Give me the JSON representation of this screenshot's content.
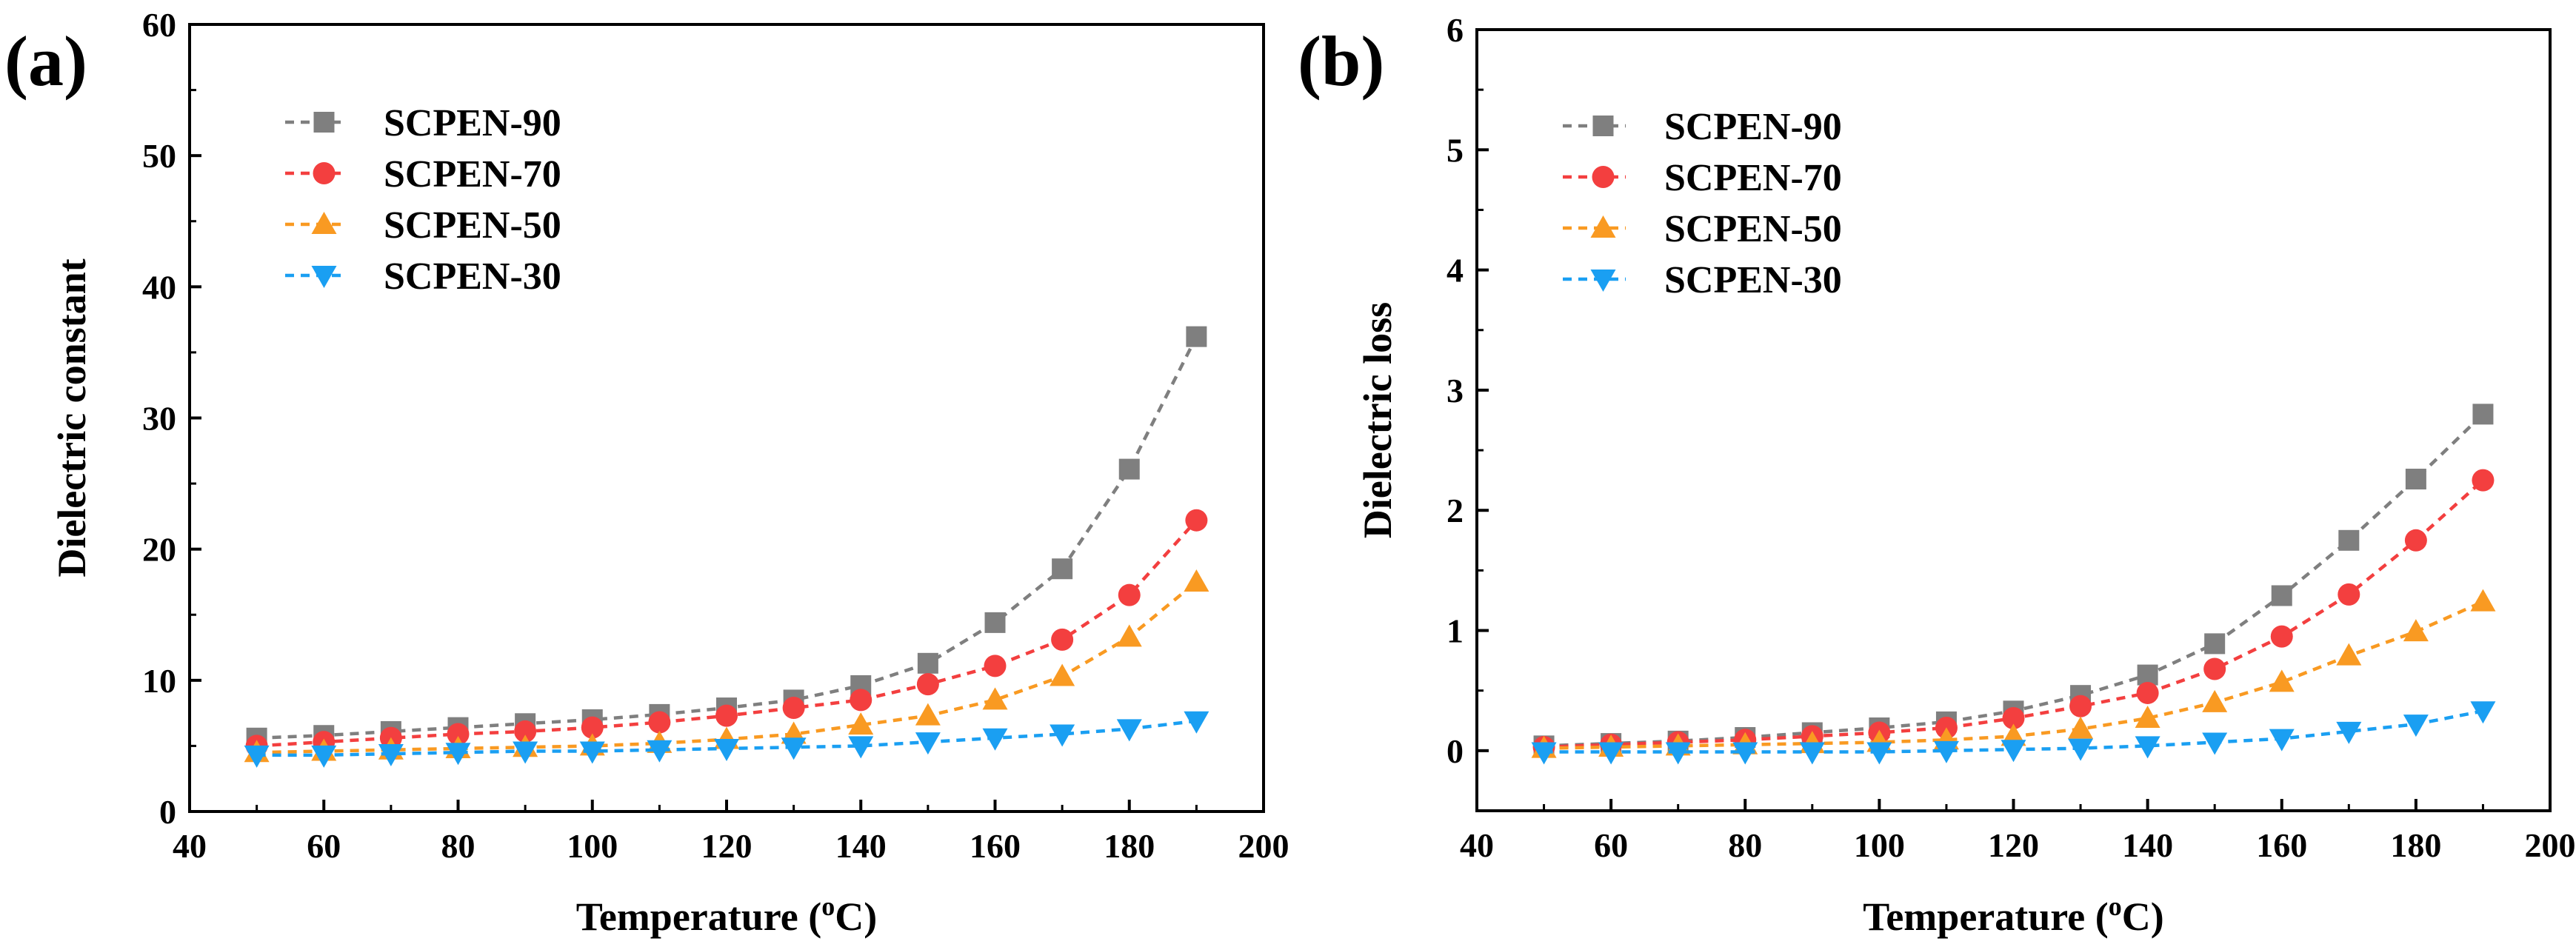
{
  "chart_data": [
    {
      "panel": "(a)",
      "type": "line",
      "xlabel": "Temperature (",
      "xlabel_super": "o",
      "xlabel_suffix": "C)",
      "ylabel": "Dielectric constant",
      "xlim": [
        40,
        200
      ],
      "ylim": [
        0,
        60
      ],
      "xticks": [
        40,
        60,
        80,
        100,
        120,
        140,
        160,
        180,
        200
      ],
      "yticks": [
        0,
        10,
        20,
        30,
        40,
        50,
        60
      ],
      "legend_position": "top-left",
      "x": [
        50,
        60,
        70,
        80,
        90,
        100,
        110,
        120,
        130,
        140,
        150,
        160,
        170,
        180,
        190
      ],
      "series": [
        {
          "name": "SCPEN-90",
          "color": "#7f7f7f",
          "marker": "square",
          "values": [
            5.6,
            5.8,
            6.1,
            6.4,
            6.7,
            7.0,
            7.4,
            7.9,
            8.5,
            9.6,
            11.3,
            14.4,
            18.5,
            26.1,
            36.2
          ]
        },
        {
          "name": "SCPEN-70",
          "color": "#f33f3f",
          "marker": "circle",
          "values": [
            5.0,
            5.3,
            5.6,
            5.9,
            6.1,
            6.4,
            6.8,
            7.3,
            7.9,
            8.5,
            9.7,
            11.1,
            13.1,
            16.5,
            22.2
          ]
        },
        {
          "name": "SCPEN-50",
          "color": "#f99a22",
          "marker": "triangle-up",
          "values": [
            4.5,
            4.6,
            4.7,
            4.8,
            4.9,
            5.0,
            5.2,
            5.5,
            5.9,
            6.6,
            7.3,
            8.5,
            10.3,
            13.3,
            17.5
          ]
        },
        {
          "name": "SCPEN-30",
          "color": "#1a9ff2",
          "marker": "triangle-down",
          "values": [
            4.3,
            4.3,
            4.4,
            4.5,
            4.6,
            4.6,
            4.7,
            4.8,
            4.9,
            5.0,
            5.3,
            5.6,
            5.9,
            6.3,
            6.9
          ]
        }
      ]
    },
    {
      "panel": "(b)",
      "type": "line",
      "xlabel": "Temperature (",
      "xlabel_super": "o",
      "xlabel_suffix": "C)",
      "ylabel": "Dielectric loss",
      "xlim": [
        40,
        200
      ],
      "ylim": [
        -0.5,
        6
      ],
      "xticks": [
        40,
        60,
        80,
        100,
        120,
        140,
        160,
        180,
        200
      ],
      "yticks": [
        0,
        1,
        2,
        3,
        4,
        5,
        6
      ],
      "legend_position": "top-left",
      "x": [
        50,
        60,
        70,
        80,
        90,
        100,
        110,
        120,
        130,
        140,
        150,
        160,
        170,
        180,
        190
      ],
      "series": [
        {
          "name": "SCPEN-90",
          "color": "#7f7f7f",
          "marker": "square",
          "values": [
            0.04,
            0.06,
            0.08,
            0.11,
            0.15,
            0.19,
            0.24,
            0.33,
            0.46,
            0.63,
            0.89,
            1.29,
            1.75,
            2.26,
            2.8
          ]
        },
        {
          "name": "SCPEN-70",
          "color": "#f33f3f",
          "marker": "circle",
          "values": [
            0.03,
            0.05,
            0.07,
            0.09,
            0.12,
            0.15,
            0.19,
            0.27,
            0.37,
            0.48,
            0.68,
            0.95,
            1.3,
            1.75,
            2.25
          ]
        },
        {
          "name": "SCPEN-50",
          "color": "#f99a22",
          "marker": "triangle-up",
          "values": [
            0.02,
            0.03,
            0.04,
            0.05,
            0.06,
            0.07,
            0.09,
            0.12,
            0.18,
            0.27,
            0.4,
            0.57,
            0.79,
            0.99,
            1.24
          ]
        },
        {
          "name": "SCPEN-30",
          "color": "#1a9ff2",
          "marker": "triangle-down",
          "values": [
            -0.01,
            -0.01,
            -0.01,
            -0.01,
            -0.01,
            -0.01,
            0.0,
            0.01,
            0.02,
            0.04,
            0.07,
            0.1,
            0.16,
            0.22,
            0.33
          ]
        }
      ]
    }
  ]
}
